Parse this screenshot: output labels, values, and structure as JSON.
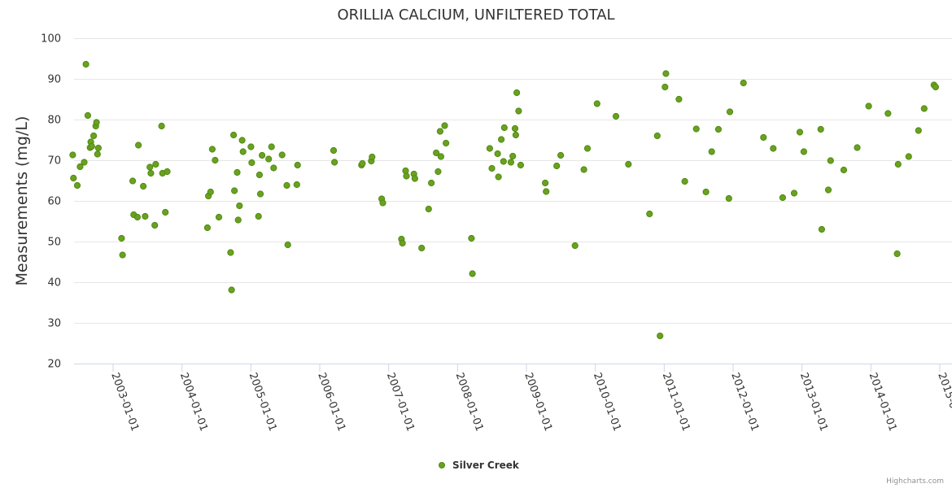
{
  "chart_data": {
    "type": "scatter",
    "title": "ORILLIA CALCIUM, UNFILTERED TOTAL",
    "ylabel": "Measurements (mg/L)",
    "xlabel": "",
    "ylim": [
      20,
      100
    ],
    "yticks": [
      20,
      30,
      40,
      50,
      60,
      70,
      80,
      90,
      100
    ],
    "xticks": [
      "2003-01-01",
      "2004-01-01",
      "2005-01-01",
      "2006-01-01",
      "2007-01-01",
      "2008-01-01",
      "2009-01-01",
      "2010-01-01",
      "2011-01-01",
      "2012-01-01",
      "2013-01-01",
      "2014-01-01",
      "2015-0"
    ],
    "grid": "horizontal",
    "legend": "bottom-center",
    "marker_color": "#6aa121",
    "series": [
      {
        "name": "Silver Creek",
        "x": [
          "2002-06-01",
          "2002-06-05",
          "2002-06-25",
          "2002-07-10",
          "2002-08-01",
          "2002-08-10",
          "2002-08-20",
          "2002-09-01",
          "2002-09-05",
          "2002-09-10",
          "2002-09-20",
          "2002-10-01",
          "2002-10-05",
          "2002-10-10",
          "2002-10-15",
          "2003-02-15",
          "2003-02-20",
          "2003-04-15",
          "2003-04-20",
          "2003-05-10",
          "2003-05-15",
          "2003-06-10",
          "2003-06-20",
          "2003-07-15",
          "2003-07-20",
          "2003-08-10",
          "2003-08-15",
          "2003-09-15",
          "2003-09-20",
          "2003-10-05",
          "2003-10-15",
          "2004-05-15",
          "2004-05-20",
          "2004-06-01",
          "2004-06-10",
          "2004-06-25",
          "2004-07-15",
          "2004-09-15",
          "2004-09-20",
          "2004-10-01",
          "2004-10-05",
          "2004-10-20",
          "2004-10-25",
          "2004-11-01",
          "2004-11-15",
          "2004-11-20",
          "2005-01-01",
          "2005-01-05",
          "2005-02-10",
          "2005-02-15",
          "2005-02-20",
          "2005-03-01",
          "2005-04-05",
          "2005-04-20",
          "2005-05-01",
          "2005-06-15",
          "2005-07-10",
          "2005-07-15",
          "2005-09-01",
          "2005-09-05",
          "2006-03-15",
          "2006-03-20",
          "2006-08-10",
          "2006-08-15",
          "2006-10-01",
          "2006-10-05",
          "2006-11-25",
          "2006-12-01",
          "2007-03-10",
          "2007-03-15",
          "2007-04-01",
          "2007-04-05",
          "2007-05-15",
          "2007-05-20",
          "2007-06-25",
          "2007-08-01",
          "2007-08-15",
          "2007-09-10",
          "2007-09-20",
          "2007-10-01",
          "2007-10-05",
          "2007-10-25",
          "2007-11-01",
          "2008-03-15",
          "2008-03-20",
          "2008-06-20",
          "2008-07-01",
          "2008-08-01",
          "2008-08-05",
          "2008-08-20",
          "2008-09-01",
          "2008-09-05",
          "2008-10-10",
          "2008-10-20",
          "2008-11-01",
          "2008-11-05",
          "2008-11-10",
          "2008-11-20",
          "2008-12-01",
          "2009-04-10",
          "2009-04-15",
          "2009-06-10",
          "2009-07-01",
          "2009-09-15",
          "2009-11-01",
          "2009-11-20",
          "2010-01-10",
          "2010-04-20",
          "2010-06-25",
          "2010-10-15",
          "2010-11-25",
          "2010-12-10",
          "2011-01-05",
          "2011-01-10",
          "2011-03-20",
          "2011-04-20",
          "2011-06-20",
          "2011-08-10",
          "2011-09-10",
          "2011-10-15",
          "2011-12-10",
          "2011-12-15",
          "2012-02-25",
          "2012-06-10",
          "2012-08-01",
          "2012-09-20",
          "2012-11-20",
          "2012-12-20",
          "2013-01-10",
          "2013-04-10",
          "2013-04-15",
          "2013-05-20",
          "2013-06-01",
          "2013-08-10",
          "2013-10-20",
          "2013-12-20",
          "2014-04-01",
          "2014-05-20",
          "2014-05-25",
          "2014-07-20",
          "2014-09-10",
          "2014-10-10",
          "2014-12-01",
          "2014-12-10"
        ],
        "y": [
          71.3,
          65.6,
          63.8,
          68.4,
          69.5,
          93.6,
          81.0,
          73.1,
          74.5,
          73.4,
          76.0,
          78.4,
          79.3,
          71.5,
          73.0,
          50.8,
          46.7,
          64.9,
          56.6,
          56.0,
          73.7,
          63.6,
          56.2,
          68.3,
          66.8,
          54.0,
          69.0,
          78.4,
          66.8,
          57.2,
          67.2,
          53.4,
          61.2,
          62.2,
          72.7,
          70.0,
          56.0,
          47.3,
          38.1,
          76.2,
          62.5,
          67.0,
          55.3,
          58.8,
          74.9,
          72.1,
          73.3,
          69.4,
          56.2,
          66.4,
          61.7,
          71.2,
          70.3,
          73.3,
          68.1,
          71.3,
          63.8,
          49.2,
          64.0,
          68.8,
          72.4,
          69.5,
          68.8,
          69.2,
          69.8,
          70.8,
          60.5,
          59.5,
          50.6,
          49.6,
          67.4,
          66.1,
          66.6,
          65.5,
          48.4,
          58.0,
          64.4,
          71.8,
          67.2,
          77.1,
          70.9,
          78.5,
          74.2,
          50.8,
          42.1,
          72.9,
          68.0,
          71.6,
          65.9,
          75.1,
          69.7,
          78.0,
          69.5,
          71.0,
          77.8,
          76.2,
          86.6,
          82.1,
          68.8,
          64.4,
          62.3,
          68.6,
          71.2,
          49.0,
          67.7,
          72.9,
          83.9,
          80.8,
          69.0,
          56.8,
          76.0,
          26.8,
          88.0,
          91.3,
          85.0,
          64.8,
          77.7,
          62.2,
          72.1,
          77.6,
          60.6,
          81.9,
          89.0,
          75.6,
          72.9,
          60.8,
          61.9,
          76.9,
          72.1,
          77.6,
          53.0,
          62.7,
          69.9,
          67.6,
          73.1,
          83.3,
          81.5,
          47.0,
          69.0,
          70.9,
          77.3,
          82.7,
          88.5,
          88.0
        ]
      }
    ]
  },
  "credits": "Highcharts.com"
}
